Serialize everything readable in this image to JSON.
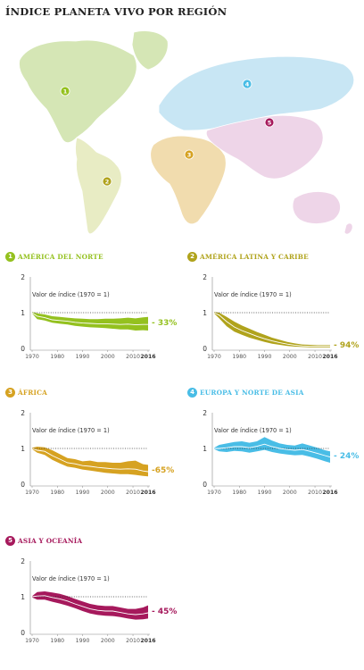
{
  "title": "ÍNDICE PLANETA VIVO POR REGIÓN",
  "colors": {
    "north_america": "#94c11f",
    "latin_america": "#b0a31c",
    "africa": "#d6a221",
    "europe_asia": "#49bde6",
    "asia_oceania": "#a6195c",
    "map_na": "#d5e6b5",
    "map_la": "#e8ecc4",
    "map_af": "#f1dcae",
    "map_eu": "#c8e6f4",
    "map_as": "#eed5e8"
  },
  "map": {
    "markers": [
      {
        "number": "1",
        "color_key": "north_america"
      },
      {
        "number": "2",
        "color_key": "latin_america"
      },
      {
        "number": "3",
        "color_key": "africa"
      },
      {
        "number": "4",
        "color_key": "europe_asia"
      },
      {
        "number": "5",
        "color_key": "asia_oceania"
      }
    ]
  },
  "chart_data": [
    {
      "type": "area",
      "number": "1",
      "title": "AMÉRICA DEL NORTE",
      "color_key": "north_america",
      "note": "Valor de índice (1970 = 1)",
      "change_label": "- 33%",
      "ylim": [
        0,
        2
      ],
      "yticks": [
        "0",
        "1",
        "2"
      ],
      "xticks": [
        "1970",
        "1980",
        "1990",
        "2000",
        "2010",
        "2016"
      ],
      "reference_line": 1,
      "x": [
        1970,
        1972,
        1975,
        1978,
        1981,
        1984,
        1987,
        1990,
        1993,
        1996,
        1999,
        2002,
        2005,
        2008,
        2011,
        2014,
        2016
      ],
      "index": [
        1.0,
        0.9,
        0.86,
        0.8,
        0.78,
        0.76,
        0.73,
        0.71,
        0.7,
        0.69,
        0.69,
        0.68,
        0.67,
        0.68,
        0.66,
        0.67,
        0.67
      ],
      "upper": [
        1.02,
        0.98,
        0.95,
        0.9,
        0.88,
        0.86,
        0.84,
        0.83,
        0.82,
        0.82,
        0.83,
        0.83,
        0.84,
        0.86,
        0.84,
        0.87,
        0.88
      ],
      "lower": [
        0.98,
        0.82,
        0.78,
        0.72,
        0.69,
        0.67,
        0.63,
        0.61,
        0.59,
        0.58,
        0.57,
        0.55,
        0.53,
        0.53,
        0.5,
        0.51,
        0.5
      ]
    },
    {
      "type": "area",
      "number": "2",
      "title": "AMÉRICA LATINA Y CARIBE",
      "color_key": "latin_america",
      "note": "Valor de índice (1970 = 1)",
      "change_label": "- 94%",
      "ylim": [
        0,
        2
      ],
      "yticks": [
        "0",
        "1",
        "2"
      ],
      "xticks": [
        "1970",
        "1980",
        "1990",
        "2000",
        "2010",
        "2016"
      ],
      "reference_line": 1,
      "x": [
        1970,
        1972,
        1975,
        1978,
        1981,
        1984,
        1987,
        1990,
        1993,
        1996,
        1999,
        2002,
        2005,
        2008,
        2011,
        2014,
        2016
      ],
      "index": [
        1.0,
        0.93,
        0.75,
        0.6,
        0.5,
        0.42,
        0.34,
        0.27,
        0.21,
        0.16,
        0.12,
        0.09,
        0.07,
        0.06,
        0.06,
        0.06,
        0.06
      ],
      "upper": [
        1.02,
        1.0,
        0.88,
        0.75,
        0.64,
        0.55,
        0.46,
        0.38,
        0.3,
        0.24,
        0.18,
        0.14,
        0.11,
        0.1,
        0.09,
        0.09,
        0.09
      ],
      "lower": [
        0.98,
        0.84,
        0.62,
        0.47,
        0.38,
        0.3,
        0.24,
        0.18,
        0.13,
        0.1,
        0.07,
        0.05,
        0.04,
        0.03,
        0.03,
        0.03,
        0.03
      ]
    },
    {
      "type": "area",
      "number": "3",
      "title": "ÁFRICA",
      "color_key": "africa",
      "note": "Valor de índice (1970 = 1)",
      "change_label": "-65%",
      "ylim": [
        0,
        2
      ],
      "yticks": [
        "0",
        "1",
        "2"
      ],
      "xticks": [
        "1970",
        "1980",
        "1990",
        "2000",
        "2010",
        "2016"
      ],
      "reference_line": 1,
      "x": [
        1970,
        1972,
        1975,
        1978,
        1981,
        1984,
        1987,
        1990,
        1993,
        1996,
        1999,
        2002,
        2005,
        2008,
        2011,
        2014,
        2016
      ],
      "index": [
        1.0,
        0.95,
        0.92,
        0.8,
        0.7,
        0.6,
        0.57,
        0.52,
        0.5,
        0.47,
        0.45,
        0.43,
        0.42,
        0.43,
        0.42,
        0.37,
        0.35
      ],
      "upper": [
        1.02,
        1.05,
        1.03,
        0.95,
        0.84,
        0.73,
        0.7,
        0.64,
        0.66,
        0.62,
        0.62,
        0.6,
        0.6,
        0.64,
        0.66,
        0.56,
        0.54
      ],
      "lower": [
        0.98,
        0.88,
        0.82,
        0.68,
        0.58,
        0.49,
        0.46,
        0.41,
        0.38,
        0.35,
        0.32,
        0.3,
        0.28,
        0.28,
        0.26,
        0.23,
        0.22
      ]
    },
    {
      "type": "area",
      "number": "4",
      "title": "EUROPA Y NORTE DE ASIA",
      "color_key": "europe_asia",
      "note": "Valor de índice (1970 = 1)",
      "change_label": "- 24%",
      "ylim": [
        0,
        2
      ],
      "yticks": [
        "0",
        "1",
        "2"
      ],
      "xticks": [
        "1970",
        "1980",
        "1990",
        "2000",
        "2010",
        "2016"
      ],
      "reference_line": 1,
      "x": [
        1970,
        1972,
        1975,
        1978,
        1981,
        1984,
        1987,
        1990,
        1993,
        1996,
        1999,
        2002,
        2005,
        2008,
        2011,
        2014,
        2016
      ],
      "index": [
        1.0,
        1.0,
        1.02,
        1.05,
        1.05,
        1.02,
        1.06,
        1.12,
        1.05,
        1.0,
        0.97,
        0.95,
        0.97,
        0.92,
        0.86,
        0.8,
        0.76
      ],
      "upper": [
        1.02,
        1.1,
        1.14,
        1.18,
        1.2,
        1.16,
        1.2,
        1.32,
        1.22,
        1.14,
        1.1,
        1.08,
        1.14,
        1.08,
        1.02,
        0.95,
        0.92
      ],
      "lower": [
        0.98,
        0.92,
        0.9,
        0.93,
        0.92,
        0.88,
        0.92,
        0.96,
        0.9,
        0.86,
        0.83,
        0.81,
        0.82,
        0.77,
        0.71,
        0.64,
        0.6
      ]
    },
    {
      "type": "area",
      "number": "5",
      "title": "ASIA Y OCEANÍA",
      "color_key": "asia_oceania",
      "note": "Valor de índice (1970 = 1)",
      "change_label": "- 45%",
      "ylim": [
        0,
        2
      ],
      "yticks": [
        "0",
        "1",
        "2"
      ],
      "xticks": [
        "1970",
        "1980",
        "1990",
        "2000",
        "2010",
        "2016"
      ],
      "reference_line": 1,
      "x": [
        1970,
        1972,
        1975,
        1978,
        1981,
        1984,
        1987,
        1990,
        1993,
        1996,
        1999,
        2002,
        2005,
        2008,
        2011,
        2014,
        2016
      ],
      "index": [
        1.0,
        1.02,
        1.03,
        0.98,
        0.94,
        0.88,
        0.8,
        0.73,
        0.66,
        0.62,
        0.6,
        0.6,
        0.56,
        0.52,
        0.5,
        0.52,
        0.55
      ],
      "upper": [
        1.02,
        1.13,
        1.15,
        1.12,
        1.08,
        1.02,
        0.94,
        0.87,
        0.8,
        0.76,
        0.74,
        0.74,
        0.7,
        0.66,
        0.66,
        0.7,
        0.76
      ],
      "lower": [
        0.98,
        0.92,
        0.92,
        0.86,
        0.81,
        0.75,
        0.68,
        0.6,
        0.53,
        0.49,
        0.47,
        0.46,
        0.43,
        0.39,
        0.36,
        0.37,
        0.39
      ]
    }
  ]
}
